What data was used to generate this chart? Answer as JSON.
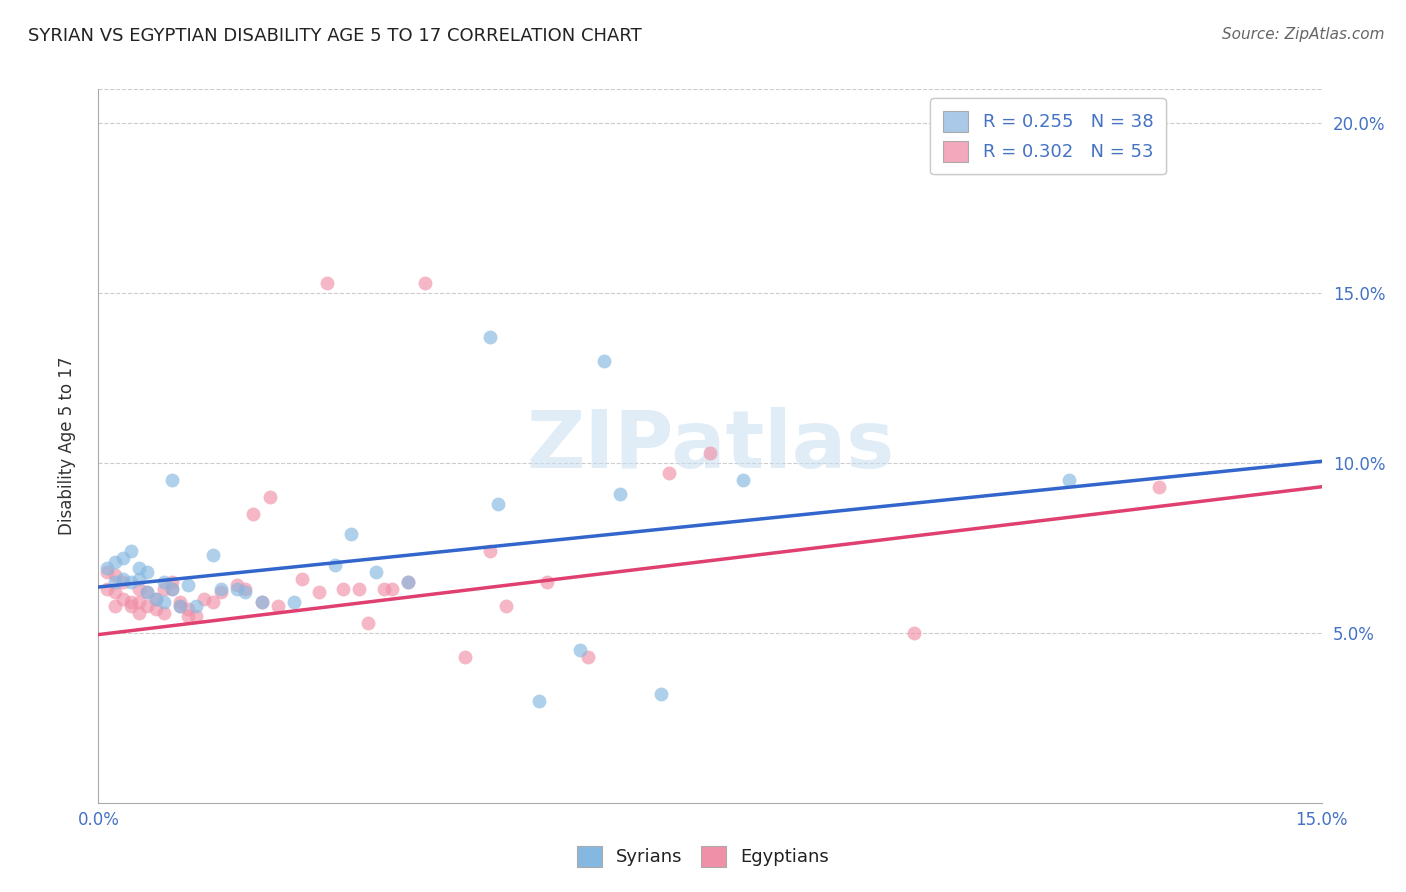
{
  "title": "SYRIAN VS EGYPTIAN DISABILITY AGE 5 TO 17 CORRELATION CHART",
  "source": "Source: ZipAtlas.com",
  "ylabel": "Disability Age 5 to 17",
  "xmin": 0.0,
  "xmax": 0.15,
  "ymin": 0.0,
  "ymax": 0.21,
  "yticks": [
    0.05,
    0.1,
    0.15,
    0.2
  ],
  "ytick_labels": [
    "5.0%",
    "10.0%",
    "15.0%",
    "20.0%"
  ],
  "legend_entries": [
    {
      "label": "R = 0.255   N = 38",
      "color": "#aac8e8"
    },
    {
      "label": "R = 0.302   N = 53",
      "color": "#f4a8bc"
    }
  ],
  "legend_labels_bottom": [
    "Syrians",
    "Egyptians"
  ],
  "syrians_color": "#85b8e0",
  "egyptians_color": "#f090a8",
  "syrian_line_color": "#3366cc",
  "egyptian_line_color": "#e04070",
  "watermark": "ZIPatlas",
  "syrians": [
    [
      0.001,
      0.069
    ],
    [
      0.002,
      0.065
    ],
    [
      0.002,
      0.071
    ],
    [
      0.003,
      0.072
    ],
    [
      0.003,
      0.066
    ],
    [
      0.004,
      0.065
    ],
    [
      0.004,
      0.074
    ],
    [
      0.005,
      0.066
    ],
    [
      0.005,
      0.069
    ],
    [
      0.006,
      0.068
    ],
    [
      0.006,
      0.062
    ],
    [
      0.007,
      0.06
    ],
    [
      0.008,
      0.065
    ],
    [
      0.008,
      0.059
    ],
    [
      0.009,
      0.063
    ],
    [
      0.009,
      0.095
    ],
    [
      0.01,
      0.058
    ],
    [
      0.011,
      0.064
    ],
    [
      0.012,
      0.058
    ],
    [
      0.014,
      0.073
    ],
    [
      0.015,
      0.063
    ],
    [
      0.017,
      0.063
    ],
    [
      0.018,
      0.062
    ],
    [
      0.02,
      0.059
    ],
    [
      0.024,
      0.059
    ],
    [
      0.029,
      0.07
    ],
    [
      0.031,
      0.079
    ],
    [
      0.034,
      0.068
    ],
    [
      0.038,
      0.065
    ],
    [
      0.049,
      0.088
    ],
    [
      0.054,
      0.03
    ],
    [
      0.059,
      0.045
    ],
    [
      0.062,
      0.13
    ],
    [
      0.064,
      0.091
    ],
    [
      0.069,
      0.032
    ],
    [
      0.079,
      0.095
    ],
    [
      0.119,
      0.095
    ],
    [
      0.048,
      0.137
    ]
  ],
  "egyptians": [
    [
      0.001,
      0.068
    ],
    [
      0.001,
      0.063
    ],
    [
      0.002,
      0.067
    ],
    [
      0.002,
      0.062
    ],
    [
      0.002,
      0.058
    ],
    [
      0.003,
      0.065
    ],
    [
      0.003,
      0.06
    ],
    [
      0.004,
      0.059
    ],
    [
      0.004,
      0.058
    ],
    [
      0.005,
      0.059
    ],
    [
      0.005,
      0.056
    ],
    [
      0.005,
      0.063
    ],
    [
      0.006,
      0.058
    ],
    [
      0.006,
      0.062
    ],
    [
      0.007,
      0.057
    ],
    [
      0.007,
      0.06
    ],
    [
      0.008,
      0.063
    ],
    [
      0.008,
      0.056
    ],
    [
      0.009,
      0.065
    ],
    [
      0.009,
      0.063
    ],
    [
      0.01,
      0.059
    ],
    [
      0.01,
      0.058
    ],
    [
      0.011,
      0.057
    ],
    [
      0.011,
      0.055
    ],
    [
      0.012,
      0.055
    ],
    [
      0.013,
      0.06
    ],
    [
      0.014,
      0.059
    ],
    [
      0.015,
      0.062
    ],
    [
      0.017,
      0.064
    ],
    [
      0.018,
      0.063
    ],
    [
      0.019,
      0.085
    ],
    [
      0.02,
      0.059
    ],
    [
      0.022,
      0.058
    ],
    [
      0.025,
      0.066
    ],
    [
      0.027,
      0.062
    ],
    [
      0.03,
      0.063
    ],
    [
      0.033,
      0.053
    ],
    [
      0.035,
      0.063
    ],
    [
      0.038,
      0.065
    ],
    [
      0.04,
      0.153
    ],
    [
      0.045,
      0.043
    ],
    [
      0.048,
      0.074
    ],
    [
      0.05,
      0.058
    ],
    [
      0.055,
      0.065
    ],
    [
      0.06,
      0.043
    ],
    [
      0.07,
      0.097
    ],
    [
      0.075,
      0.103
    ],
    [
      0.1,
      0.05
    ],
    [
      0.13,
      0.093
    ],
    [
      0.028,
      0.153
    ],
    [
      0.032,
      0.063
    ],
    [
      0.036,
      0.063
    ],
    [
      0.021,
      0.09
    ]
  ],
  "syrian_line": [
    [
      0.0,
      0.0635
    ],
    [
      0.15,
      0.1005
    ]
  ],
  "egyptian_line": [
    [
      0.0,
      0.0495
    ],
    [
      0.15,
      0.093
    ]
  ]
}
